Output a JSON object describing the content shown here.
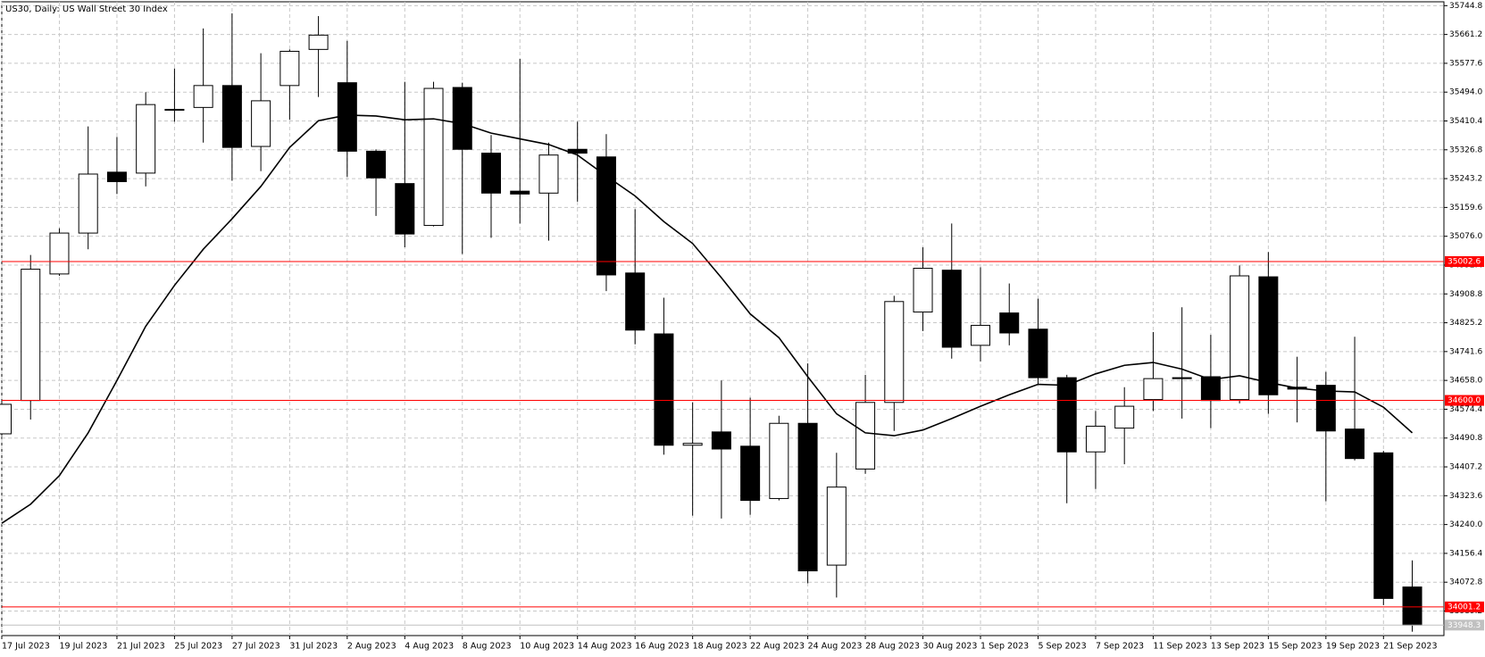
{
  "chart_data": {
    "type": "candlestick",
    "title": "US30, Daily:  US Wall Street 30 Index",
    "categories": [
      "17 Jul 2023",
      null,
      "19 Jul 2023",
      null,
      "21 Jul 2023",
      null,
      "25 Jul 2023",
      null,
      "27 Jul 2023",
      null,
      "31 Jul 2023",
      null,
      "2 Aug 2023",
      null,
      "4 Aug 2023",
      null,
      "8 Aug 2023",
      null,
      "10 Aug 2023",
      null,
      "14 Aug 2023",
      null,
      "16 Aug 2023",
      null,
      "18 Aug 2023",
      null,
      "22 Aug 2023",
      null,
      "24 Aug 2023",
      null,
      "28 Aug 2023",
      null,
      "30 Aug 2023",
      null,
      "1 Sep 2023",
      null,
      "5 Sep 2023",
      null,
      "7 Sep 2023",
      null,
      "11 Sep 2023",
      null,
      "13 Sep 2023",
      null,
      "15 Sep 2023",
      null,
      "19 Sep 2023",
      null,
      "21 Sep 2023",
      null
    ],
    "open": [
      34503.1,
      34599.7,
      34966.7,
      35085.3,
      35261.9,
      35259.2,
      35441.3,
      35449.6,
      35513.1,
      35336.5,
      35513.1,
      35617.9,
      35521.3,
      35322.7,
      35228.8,
      35107.4,
      35507.5,
      35317.1,
      35206.8,
      35201.2,
      35328.2,
      35306.1,
      34969.5,
      34792.9,
      34470.0,
      34508.6,
      34467.2,
      34315.5,
      34533.5,
      34122.3,
      34401.0,
      34594.2,
      34856.3,
      34977.7,
      34759.7,
      34853.6,
      34806.6,
      34665.9,
      34450.7,
      34519.7,
      34602.4,
      34665.9,
      34668.7,
      34602.4,
      34958.4,
      34638.3,
      34643.8,
      34516.9,
      34447.9,
      34058.9
    ],
    "high": [
      34602.4,
      35021.9,
      35099.1,
      35394.4,
      35364.0,
      35493.7,
      35562.7,
      35678.6,
      35722.8,
      35606.9,
      35617.9,
      35714.5,
      35642.7,
      35328.2,
      35524.1,
      35524.1,
      35521.3,
      35369.6,
      35590.3,
      35347.5,
      35408.2,
      35372.3,
      35154.3,
      34897.7,
      34594.2,
      34657.6,
      34608.0,
      34555.5,
      34707.3,
      34447.9,
      34674.2,
      34903.2,
      35044.0,
      35112.9,
      34986.0,
      34939.1,
      34894.9,
      34674.2,
      34569.3,
      34638.3,
      34798.4,
      34870.1,
      34790.1,
      34991.5,
      35030.2,
      34726.6,
      34682.5,
      34784.6,
      34453.4,
      34136.1
    ],
    "low": [
      34497.6,
      34544.5,
      34961.2,
      35038.4,
      35198.5,
      35220.6,
      35408.2,
      35347.5,
      35237.1,
      35264.7,
      35413.7,
      35479.9,
      35248.2,
      35135.0,
      35044.0,
      35104.7,
      35024.6,
      35071.5,
      35112.9,
      35063.3,
      35176.4,
      34917.0,
      34762.5,
      34442.4,
      34265.8,
      34257.5,
      34268.6,
      34310.0,
      34069.9,
      34028.5,
      34387.2,
      34511.4,
      34801.1,
      34721.1,
      34712.8,
      34759.7,
      34646.6,
      34301.7,
      34343.1,
      34414.8,
      34569.3,
      34547.3,
      34519.7,
      34591.4,
      34561.1,
      34536.2,
      34307.2,
      34425.9,
      34006.4,
      33929.2
    ],
    "close": [
      34588.7,
      34980.5,
      35085.3,
      35256.4,
      35234.4,
      35457.9,
      35444.1,
      35513.1,
      35333.7,
      35468.9,
      35612.4,
      35659.3,
      35322.7,
      35245.4,
      35082.6,
      35504.8,
      35328.2,
      35201.2,
      35198.5,
      35311.6,
      35317.1,
      34963.9,
      34803.9,
      34470.0,
      34475.5,
      34459.0,
      34310.0,
      34533.5,
      34105.7,
      34348.6,
      34594.2,
      34886.7,
      34983.2,
      34754.2,
      34817.7,
      34795.6,
      34665.9,
      34450.7,
      34525.2,
      34583.1,
      34663.2,
      34663.2,
      34599.7,
      34961.2,
      34616.3,
      34632.8,
      34511.4,
      34431.4,
      34025.7,
      33948.3
    ],
    "up_color": "#ffffff",
    "down_color": "#000000",
    "moving_average": {
      "color": "#000000",
      "values": [
        34243.7,
        34298.9,
        34381.7,
        34505.9,
        34657.6,
        34814.9,
        34933.6,
        35038.4,
        35126.7,
        35220.6,
        35333.7,
        35411.0,
        35427.5,
        35424.8,
        35413.7,
        35416.5,
        35402.7,
        35375.1,
        35358.5,
        35342.0,
        35311.6,
        35250.9,
        35193.0,
        35118.5,
        35055.0,
        34955.7,
        34850.8,
        34781.8,
        34668.7,
        34561.1,
        34505.9,
        34497.6,
        34514.2,
        34547.3,
        34583.1,
        34616.3,
        34646.6,
        34643.8,
        34677.0,
        34701.8,
        34710.1,
        34690.8,
        34660.4,
        34671.4,
        34652.1,
        34635.6,
        34627.3,
        34624.5,
        34580.4,
        34505.9
      ]
    },
    "levels": {
      "color": "#ff0000",
      "values": [
        35002.6,
        {
          "value": 34600,
          "label": "34600.0"
        },
        34001.2
      ]
    },
    "last_price": 33948.3,
    "ylim": [
      33918,
      35756
    ],
    "yticks": [
      35744.8,
      35661.2,
      35577.6,
      {
        "value": 35494,
        "label": "35494.0"
      },
      35410.4,
      35326.8,
      35243.2,
      35159.6,
      {
        "value": 35076,
        "label": "35076.0"
      },
      34992.4,
      34908.8,
      34825.2,
      34741.6,
      {
        "value": 34658,
        "label": "34658.0"
      },
      34574.4,
      34490.8,
      34407.2,
      34323.6,
      {
        "value": 34240,
        "label": "34240.0"
      },
      34156.4,
      34072.8,
      33989.2
    ],
    "grid": true
  }
}
